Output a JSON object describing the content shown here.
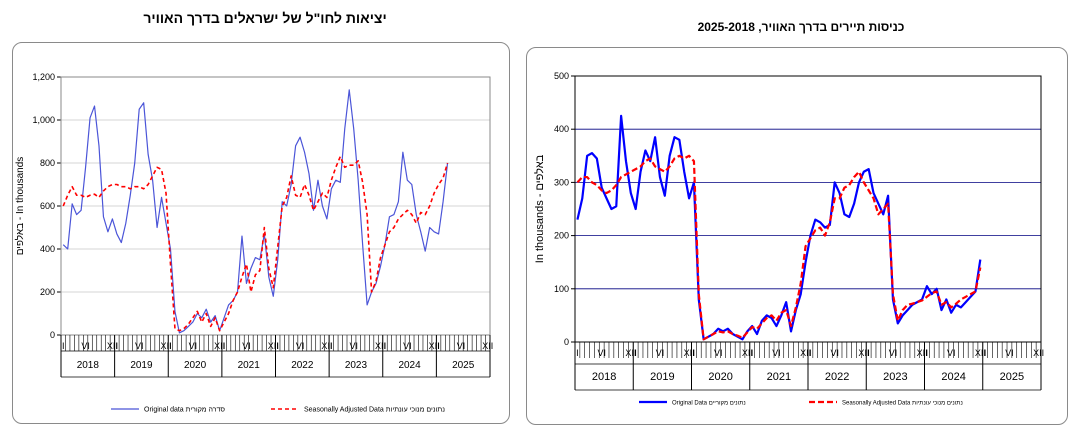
{
  "left": {
    "title": "יציאות לחו\"ל של ישראלים בדרך האוויר",
    "legend": {
      "original": "Original data סדרה מקורית",
      "adjusted": "Seasonally Adjusted Data נתונים מנוכי עונתיות"
    }
  },
  "right": {
    "title": "כניסות תיירים בדרך האוויר, 2025-2018",
    "legend": {
      "original": "Original Data נתונים מקוריים",
      "adjusted": "Seasonally Adjusted Data נתונים מנוכי עונתיות"
    }
  },
  "chart_data": [
    {
      "type": "line",
      "title": "יציאות לחו\"ל של ישראלים בדרך האוויר",
      "ylabel": "באלפים - In thousands",
      "ylim": [
        0,
        1200
      ],
      "yticks": [
        0,
        200,
        400,
        600,
        800,
        1000,
        1200
      ],
      "ytick_labels": [
        "0",
        "200",
        "400",
        "600",
        "800",
        "1,000",
        "1,200"
      ],
      "years": [
        "2018",
        "2019",
        "2020",
        "2021",
        "2022",
        "2023",
        "2024",
        "2025"
      ],
      "month_ticks": [
        "I",
        "VI",
        "XII"
      ],
      "x_start": "2018-01",
      "grid": "horizontal",
      "legend_position": "bottom",
      "colors": {
        "original": "#4b55d8",
        "adjusted": "#ff0000"
      },
      "series": [
        {
          "name": "Original data סדרה מקורית",
          "style": "solid",
          "values": [
            420,
            400,
            610,
            560,
            580,
            780,
            1010,
            1065,
            880,
            550,
            480,
            540,
            470,
            430,
            520,
            650,
            800,
            1050,
            1080,
            840,
            720,
            500,
            640,
            520,
            400,
            110,
            10,
            20,
            40,
            60,
            100,
            80,
            120,
            60,
            90,
            20,
            80,
            140,
            160,
            200,
            460,
            240,
            310,
            360,
            350,
            470,
            270,
            180,
            350,
            620,
            600,
            700,
            880,
            920,
            850,
            750,
            580,
            720,
            600,
            540,
            680,
            720,
            710,
            960,
            1140,
            960,
            720,
            420,
            140,
            200,
            240,
            320,
            420,
            550,
            560,
            620,
            850,
            720,
            700,
            560,
            480,
            390,
            500,
            480,
            470,
            620,
            800
          ]
        },
        {
          "name": "Seasonally Adjusted Data נתונים מנוכי עונתיות",
          "style": "dashed",
          "values": [
            600,
            650,
            690,
            650,
            650,
            640,
            650,
            655,
            640,
            670,
            690,
            700,
            700,
            690,
            690,
            680,
            690,
            690,
            680,
            700,
            740,
            780,
            770,
            660,
            330,
            30,
            20,
            30,
            50,
            80,
            110,
            60,
            100,
            40,
            80,
            20,
            60,
            100,
            160,
            200,
            270,
            330,
            200,
            280,
            300,
            500,
            310,
            220,
            410,
            600,
            640,
            740,
            650,
            640,
            700,
            650,
            580,
            620,
            660,
            640,
            720,
            780,
            830,
            780,
            790,
            790,
            810,
            710,
            560,
            200,
            250,
            360,
            420,
            480,
            500,
            540,
            560,
            580,
            560,
            520,
            570,
            560,
            600,
            660,
            700,
            730,
            800
          ]
        }
      ]
    },
    {
      "type": "line",
      "title": "כניסות תיירים בדרך האוויר, 2025-2018",
      "ylabel": "In thousands - באלפים",
      "ylim": [
        0,
        500
      ],
      "yticks": [
        0,
        100,
        200,
        300,
        400,
        500
      ],
      "ytick_labels": [
        "0",
        "100",
        "200",
        "300",
        "400",
        "500"
      ],
      "years": [
        "2018",
        "2019",
        "2020",
        "2021",
        "2022",
        "2023",
        "2024",
        "2025"
      ],
      "month_ticks": [
        "I",
        "VI",
        "XII"
      ],
      "x_start": "2018-01",
      "grid": "horizontal",
      "legend_position": "bottom",
      "colors": {
        "original": "#0000ff",
        "adjusted": "#ff0000"
      },
      "series": [
        {
          "name": "Original Data נתונים מקוריים",
          "style": "solid",
          "values": [
            230,
            270,
            350,
            355,
            345,
            290,
            270,
            250,
            255,
            425,
            340,
            280,
            250,
            320,
            360,
            340,
            385,
            310,
            275,
            350,
            385,
            380,
            320,
            270,
            300,
            80,
            5,
            10,
            15,
            25,
            20,
            25,
            15,
            10,
            5,
            20,
            30,
            15,
            40,
            50,
            45,
            30,
            50,
            75,
            20,
            60,
            90,
            150,
            200,
            230,
            225,
            215,
            220,
            300,
            280,
            240,
            235,
            260,
            300,
            320,
            325,
            280,
            260,
            240,
            275,
            80,
            35,
            50,
            60,
            70,
            75,
            80,
            105,
            90,
            100,
            60,
            80,
            55,
            70,
            65,
            75,
            85,
            95,
            155
          ]
        },
        {
          "name": "Seasonally Adjusted Data נתונים מנוכי עונתיות",
          "style": "dashed",
          "values": [
            300,
            310,
            310,
            300,
            295,
            285,
            280,
            285,
            295,
            310,
            315,
            320,
            325,
            330,
            340,
            345,
            330,
            325,
            320,
            330,
            345,
            350,
            345,
            350,
            340,
            90,
            5,
            10,
            15,
            20,
            18,
            20,
            15,
            12,
            8,
            18,
            28,
            25,
            35,
            45,
            50,
            40,
            55,
            60,
            30,
            65,
            110,
            180,
            195,
            210,
            215,
            200,
            225,
            270,
            270,
            290,
            295,
            310,
            320,
            300,
            285,
            270,
            240,
            250,
            260,
            90,
            40,
            60,
            70,
            72,
            75,
            78,
            85,
            92,
            95,
            70,
            75,
            65,
            72,
            80,
            85,
            90,
            95,
            140
          ]
        }
      ]
    }
  ]
}
